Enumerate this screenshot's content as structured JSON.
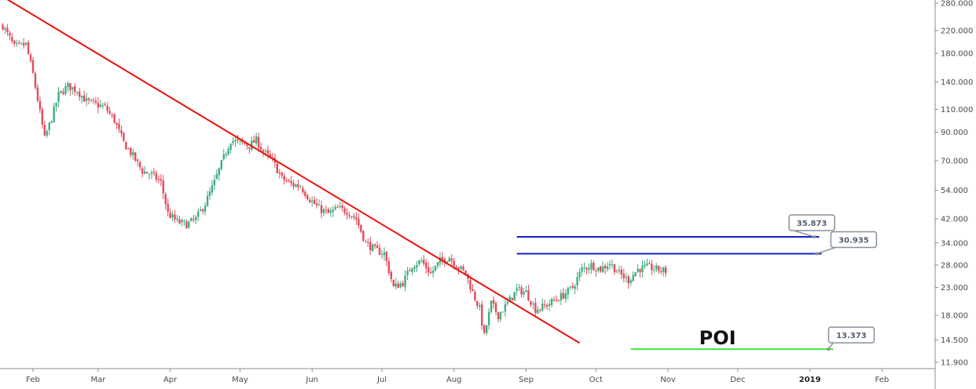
{
  "chart_data": {
    "type": "candlestick",
    "title": "",
    "xlabel": "",
    "ylabel": "",
    "y_scale": "log",
    "y_ticks": [
      11.9,
      14.5,
      18.0,
      23.0,
      28.0,
      34.0,
      42.0,
      54.0,
      70.0,
      90.0,
      110.0,
      140.0,
      180.0,
      220.0,
      280.0
    ],
    "y_tick_labels": [
      "11.900",
      "14.500",
      "18.000",
      "23.000",
      "28.000",
      "34.000",
      "42.000",
      "54.000",
      "70.000",
      "90.000",
      "110.000",
      "140.000",
      "180.000",
      "220.000",
      "280.000"
    ],
    "x_ticks": [
      "2018-02-01",
      "2018-03-01",
      "2018-04-01",
      "2018-05-01",
      "2018-06-01",
      "2018-07-01",
      "2018-08-01",
      "2018-09-01",
      "2018-10-01",
      "2018-11-01",
      "2018-12-01",
      "2019-01-01",
      "2019-02-01"
    ],
    "x_tick_labels": [
      "Feb",
      "Mar",
      "Apr",
      "May",
      "Jun",
      "Jul",
      "Aug",
      "Sep",
      "Oct",
      "Nov",
      "Dec",
      "2019",
      "Feb"
    ],
    "bold_x_tick": "2019",
    "candle_colors": {
      "up": "#3fae7f",
      "down": "#e24b5b"
    },
    "price_path": [
      [
        "2018-01-19",
        230
      ],
      [
        "2018-01-24",
        190
      ],
      [
        "2018-01-29",
        195
      ],
      [
        "2018-02-01",
        150
      ],
      [
        "2018-02-03",
        120
      ],
      [
        "2018-02-06",
        85
      ],
      [
        "2018-02-09",
        102
      ],
      [
        "2018-02-12",
        125
      ],
      [
        "2018-02-16",
        135
      ],
      [
        "2018-02-20",
        130
      ],
      [
        "2018-02-24",
        118
      ],
      [
        "2018-02-28",
        115
      ],
      [
        "2018-03-04",
        112
      ],
      [
        "2018-03-08",
        100
      ],
      [
        "2018-03-12",
        82
      ],
      [
        "2018-03-16",
        73
      ],
      [
        "2018-03-20",
        64
      ],
      [
        "2018-03-24",
        62
      ],
      [
        "2018-03-28",
        58
      ],
      [
        "2018-03-31",
        44
      ],
      [
        "2018-04-04",
        41
      ],
      [
        "2018-04-08",
        40
      ],
      [
        "2018-04-12",
        42
      ],
      [
        "2018-04-16",
        48
      ],
      [
        "2018-04-20",
        58
      ],
      [
        "2018-04-24",
        72
      ],
      [
        "2018-04-27",
        84
      ],
      [
        "2018-05-01",
        82
      ],
      [
        "2018-05-05",
        80
      ],
      [
        "2018-05-08",
        84
      ],
      [
        "2018-05-11",
        76
      ],
      [
        "2018-05-15",
        70
      ],
      [
        "2018-05-19",
        60
      ],
      [
        "2018-05-23",
        57
      ],
      [
        "2018-05-27",
        56
      ],
      [
        "2018-05-31",
        50
      ],
      [
        "2018-06-04",
        46
      ],
      [
        "2018-06-08",
        44
      ],
      [
        "2018-06-12",
        46
      ],
      [
        "2018-06-16",
        45
      ],
      [
        "2018-06-20",
        42
      ],
      [
        "2018-06-24",
        34
      ],
      [
        "2018-06-28",
        32
      ],
      [
        "2018-07-02",
        31
      ],
      [
        "2018-07-06",
        23
      ],
      [
        "2018-07-10",
        24
      ],
      [
        "2018-07-14",
        28
      ],
      [
        "2018-07-18",
        29
      ],
      [
        "2018-07-22",
        26
      ],
      [
        "2018-07-26",
        29
      ],
      [
        "2018-07-30",
        30
      ],
      [
        "2018-08-02",
        28
      ],
      [
        "2018-08-06",
        26
      ],
      [
        "2018-08-09",
        22
      ],
      [
        "2018-08-12",
        19
      ],
      [
        "2018-08-14",
        15
      ],
      [
        "2018-08-17",
        20
      ],
      [
        "2018-08-20",
        18
      ],
      [
        "2018-08-24",
        20
      ],
      [
        "2018-08-28",
        22.5
      ],
      [
        "2018-09-01",
        22
      ],
      [
        "2018-09-05",
        19
      ],
      [
        "2018-09-09",
        19.5
      ],
      [
        "2018-09-13",
        20.5
      ],
      [
        "2018-09-17",
        21.5
      ],
      [
        "2018-09-21",
        23
      ],
      [
        "2018-09-25",
        27
      ],
      [
        "2018-09-29",
        28
      ],
      [
        "2018-10-03",
        27
      ],
      [
        "2018-10-07",
        28.5
      ],
      [
        "2018-10-11",
        26
      ],
      [
        "2018-10-15",
        24.5
      ],
      [
        "2018-10-19",
        27
      ],
      [
        "2018-10-23",
        27.5
      ],
      [
        "2018-10-27",
        27
      ],
      [
        "2018-10-31",
        26.5
      ]
    ],
    "trendline": {
      "start": [
        "2018-01-18",
        300
      ],
      "end": [
        "2018-09-24",
        14.1
      ],
      "color": "#e8120d"
    },
    "levels": [
      {
        "value": 35.873,
        "x_start": "2018-08-28",
        "x_end": "2019-01-05",
        "color": "#1321c9",
        "label": "35.873",
        "label_at": "2018-12-21"
      },
      {
        "value": 30.935,
        "x_start": "2018-08-28",
        "x_end": "2019-01-06",
        "color": "#1321c9",
        "label": "30.935",
        "label_at": "2019-01-08"
      },
      {
        "value": 13.373,
        "x_start": "2018-10-16",
        "x_end": "2019-01-11",
        "color": "#3ee63a",
        "label": "13.373",
        "label_at": "2019-01-07"
      }
    ],
    "annotation": {
      "text": "POI",
      "at": "2018-11-25"
    }
  }
}
